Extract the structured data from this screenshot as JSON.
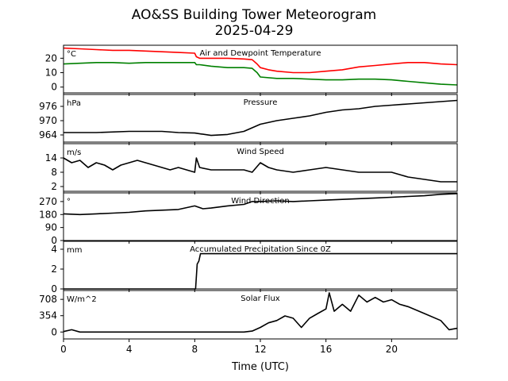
{
  "title": "AO&SS Building Tower Meteorogram",
  "subtitle": "2025-04-29",
  "xlabel": "Time (UTC)",
  "chart_data": {
    "type": "line",
    "x_unit": "hours UTC",
    "xlim": [
      0,
      24
    ],
    "x_ticks": [
      0,
      4,
      8,
      12,
      16,
      20
    ],
    "x_tick_labels": [
      "0",
      "4",
      "8",
      "12",
      "16",
      "20"
    ],
    "colors": {
      "temperature": "#ff0000",
      "dewpoint": "#008000",
      "default": "#000000"
    },
    "panels": [
      {
        "id": "temp",
        "title": "Air and Dewpoint Temperature",
        "unit_label": "°C",
        "ylim": [
          -4,
          29
        ],
        "yticks": [
          0,
          10,
          20
        ],
        "ytick_labels": [
          "0",
          "10",
          "20"
        ],
        "series": [
          {
            "key": "temperature",
            "color": "#ff0000",
            "x": [
              0,
              1,
              2,
              3,
              4,
              5,
              6,
              7,
              8,
              8.1,
              8.3,
              9,
              10,
              11,
              11.5,
              11.8,
              12,
              12.5,
              13,
              14,
              15,
              16,
              17,
              18,
              19,
              20,
              21,
              22,
              23,
              24
            ],
            "y": [
              27,
              26.5,
              26,
              25.5,
              25.5,
              25,
              24.5,
              24,
              23.5,
              21,
              20,
              20,
              20,
              19.5,
              19,
              16,
              13.5,
              12,
              11,
              10,
              10,
              11,
              12,
              14,
              15,
              16,
              17,
              17,
              16,
              15.5
            ]
          },
          {
            "key": "dewpoint",
            "color": "#008000",
            "x": [
              0,
              1,
              2,
              3,
              4,
              5,
              6,
              7,
              8,
              8.1,
              8.3,
              9,
              10,
              11,
              11.5,
              11.8,
              12,
              13,
              14,
              15,
              16,
              17,
              18,
              19,
              20,
              21,
              22,
              23,
              24
            ],
            "y": [
              16,
              16.5,
              17,
              17,
              16.5,
              17,
              17,
              17,
              17,
              15.5,
              15.5,
              14.5,
              13.5,
              13.5,
              13,
              10,
              7,
              6,
              6,
              5.5,
              5,
              5,
              5.5,
              5.5,
              5,
              4,
              3,
              2,
              1.5
            ]
          }
        ]
      },
      {
        "id": "pressure",
        "title": "Pressure",
        "unit_label": "hPa",
        "ylim": [
          961,
          981
        ],
        "yticks": [
          964,
          970,
          976
        ],
        "ytick_labels": [
          "964",
          "970",
          "976"
        ],
        "series": [
          {
            "key": "pressure",
            "color": "#000000",
            "x": [
              0,
              2,
              4,
              6,
              7,
              8,
              9,
              10,
              11,
              12,
              13,
              14,
              15,
              16,
              17,
              18,
              19,
              20,
              21,
              22,
              23,
              24
            ],
            "y": [
              965,
              965,
              965.5,
              965.5,
              965,
              964.8,
              963.8,
              964.2,
              965.5,
              968.5,
              970,
              971,
              972,
              973.5,
              974.5,
              975,
              976,
              976.5,
              977,
              977.5,
              978,
              978.5
            ]
          }
        ]
      },
      {
        "id": "wind_speed",
        "title": "Wind Speed",
        "unit_label": "m/s",
        "ylim": [
          0,
          20
        ],
        "yticks": [
          2,
          8,
          14
        ],
        "ytick_labels": [
          "2",
          "8",
          "14"
        ],
        "series": [
          {
            "key": "wind_speed",
            "color": "#000000",
            "x": [
              0,
              0.5,
              1,
              1.5,
              2,
              2.5,
              3,
              3.5,
              4,
              4.5,
              5,
              5.5,
              6,
              6.5,
              7,
              7.5,
              8,
              8.1,
              8.3,
              9,
              10,
              11,
              11.5,
              12,
              12.5,
              13,
              14,
              15,
              16,
              17,
              18,
              19,
              20,
              21,
              22,
              23,
              24
            ],
            "y": [
              14,
              12,
              13,
              10,
              12,
              11,
              9,
              11,
              12,
              13,
              12,
              11,
              10,
              9,
              10,
              9,
              8,
              14,
              10,
              9,
              9,
              9,
              8,
              12,
              10,
              9,
              8,
              9,
              10,
              9,
              8,
              8,
              8,
              6,
              5,
              4,
              4
            ]
          }
        ]
      },
      {
        "id": "wind_dir",
        "title": "Wind Direction",
        "unit_label": "°",
        "ylim": [
          0,
          330
        ],
        "yticks": [
          0,
          90,
          180,
          270
        ],
        "ytick_labels": [
          "0",
          "90",
          "180",
          "270"
        ],
        "series": [
          {
            "key": "wind_direction",
            "color": "#000000",
            "x": [
              0,
              1,
              2,
              3,
              4,
              5,
              6,
              7,
              8,
              8.5,
              9,
              10,
              11,
              11.5,
              12,
              13,
              14,
              15,
              16,
              17,
              18,
              19,
              20,
              21,
              22,
              23,
              24
            ],
            "y": [
              185,
              180,
              185,
              190,
              195,
              205,
              210,
              215,
              240,
              220,
              225,
              240,
              250,
              270,
              270,
              275,
              270,
              275,
              280,
              285,
              290,
              295,
              300,
              305,
              310,
              320,
              325
            ]
          }
        ]
      },
      {
        "id": "precip",
        "title": "Accumulated Precipitation Since 0Z",
        "unit_label": "mm",
        "ylim": [
          0,
          4.8
        ],
        "yticks": [
          0,
          2,
          4
        ],
        "ytick_labels": [
          "0",
          "2",
          "4"
        ],
        "series": [
          {
            "key": "precipitation",
            "color": "#000000",
            "x": [
              0,
              8.05,
              8.15,
              8.25,
              8.35,
              24
            ],
            "y": [
              0,
              0,
              2.5,
              2.8,
              3.55,
              3.55
            ]
          }
        ]
      },
      {
        "id": "solar",
        "title": "Solar Flux",
        "unit_label": "W/m^2",
        "ylim": [
          -150,
          900
        ],
        "yticks": [
          0,
          354,
          708
        ],
        "ytick_labels": [
          "0",
          "354",
          "708"
        ],
        "series": [
          {
            "key": "solar_flux",
            "color": "#000000",
            "x": [
              0,
              0.5,
              1,
              6,
              11,
              11.5,
              12,
              12.5,
              13,
              13.5,
              14,
              14.5,
              15,
              15.5,
              16,
              16.2,
              16.5,
              17,
              17.5,
              18,
              18.5,
              19,
              19.5,
              20,
              20.5,
              21,
              22,
              23,
              23.5,
              24
            ],
            "y": [
              10,
              50,
              0,
              0,
              0,
              20,
              100,
              200,
              250,
              350,
              300,
              100,
              300,
              400,
              500,
              850,
              450,
              600,
              450,
              800,
              650,
              750,
              650,
              700,
              600,
              550,
              400,
              250,
              50,
              80
            ]
          }
        ]
      }
    ]
  }
}
